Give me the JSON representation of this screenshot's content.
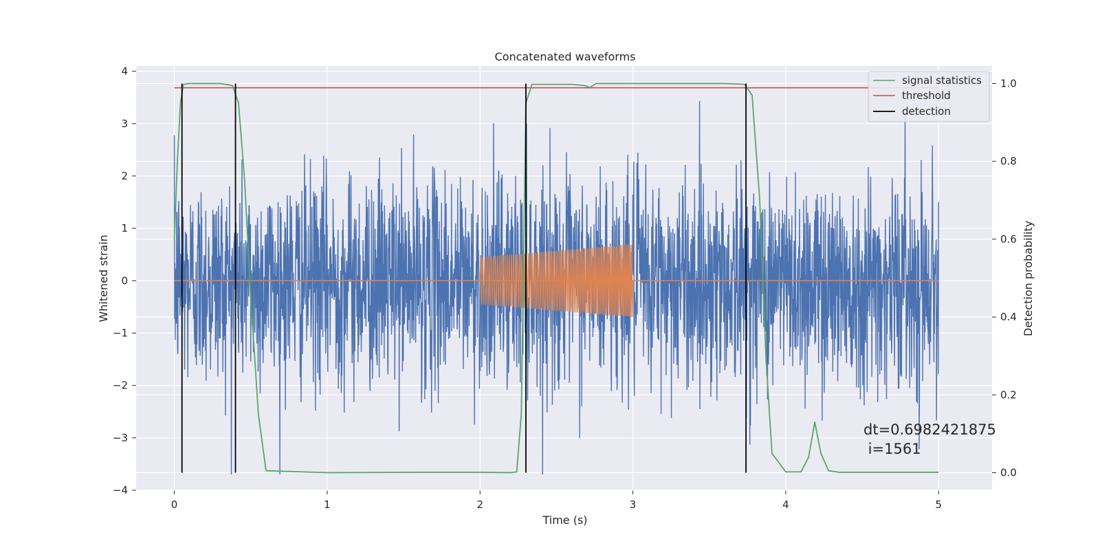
{
  "chart_data": {
    "type": "line",
    "title": "Concatenated waveforms",
    "xlabel": "Time (s)",
    "ylabel": "Whitened strain",
    "y2label": "Detection probability",
    "xlim": [
      -0.25,
      5.35
    ],
    "ylim": [
      -4.0,
      4.1
    ],
    "y2lim": [
      -0.045,
      1.045
    ],
    "xticks": [
      "0",
      "1",
      "2",
      "3",
      "4",
      "5"
    ],
    "yticks": [
      "4",
      "3",
      "2",
      "1",
      "0",
      "−1",
      "−2",
      "−3",
      "−4"
    ],
    "y2ticks": [
      "1.0",
      "0.8",
      "0.6",
      "0.4",
      "0.2",
      "0.0"
    ],
    "grid": true,
    "legend_position": "upper-right",
    "colors": {
      "strain": "#4c72b0",
      "injection": "#dd8452",
      "signal": "#55a868",
      "threshold": "#c44e52",
      "detection": "#000000",
      "background": "#eaeaf2"
    },
    "series": [
      {
        "name": "",
        "axis": "left",
        "kind": "noise",
        "x_range": [
          0,
          5
        ],
        "typical_amplitude": 1.0,
        "peak_max": 3.7,
        "peak_min": -3.7
      },
      {
        "name": "",
        "axis": "left",
        "kind": "chirp",
        "x_range": [
          2.0,
          3.0
        ],
        "amplitude_start": 0.45,
        "amplitude_end": 0.7
      },
      {
        "name": "signal statistics",
        "axis": "right",
        "x": [
          0,
          0.02,
          0.04,
          0.06,
          0.1,
          0.3,
          0.38,
          0.42,
          0.46,
          0.5,
          0.55,
          0.6,
          1.0,
          1.6,
          2.0,
          2.2,
          2.24,
          2.27,
          2.3,
          2.34,
          2.6,
          2.68,
          2.72,
          2.76,
          3.0,
          3.6,
          3.73,
          3.78,
          3.83,
          3.87,
          3.91,
          4.0,
          4.1,
          4.15,
          4.19,
          4.23,
          4.28,
          4.35,
          4.6,
          5.0
        ],
        "y": [
          0.6,
          0.8,
          0.95,
          0.998,
          1.0,
          1.0,
          0.995,
          0.95,
          0.75,
          0.45,
          0.15,
          0.005,
          0.0,
          0.001,
          0.001,
          0.0,
          0.002,
          0.15,
          0.95,
          0.998,
          0.998,
          0.995,
          0.99,
          1.0,
          1.0,
          1.0,
          0.998,
          0.97,
          0.7,
          0.3,
          0.05,
          0.002,
          0.002,
          0.04,
          0.13,
          0.05,
          0.005,
          0.001,
          0.001,
          0.001
        ]
      },
      {
        "name": "threshold",
        "axis": "right",
        "value": 0.989,
        "x_range": [
          0,
          5
        ]
      },
      {
        "name": "detection",
        "axis": "right",
        "x": [
          0.05,
          0.4,
          2.3,
          3.74
        ],
        "y_range": [
          0.0,
          1.0
        ]
      }
    ],
    "annotation": [
      "dt=0.6982421875",
      " i=1561"
    ]
  }
}
